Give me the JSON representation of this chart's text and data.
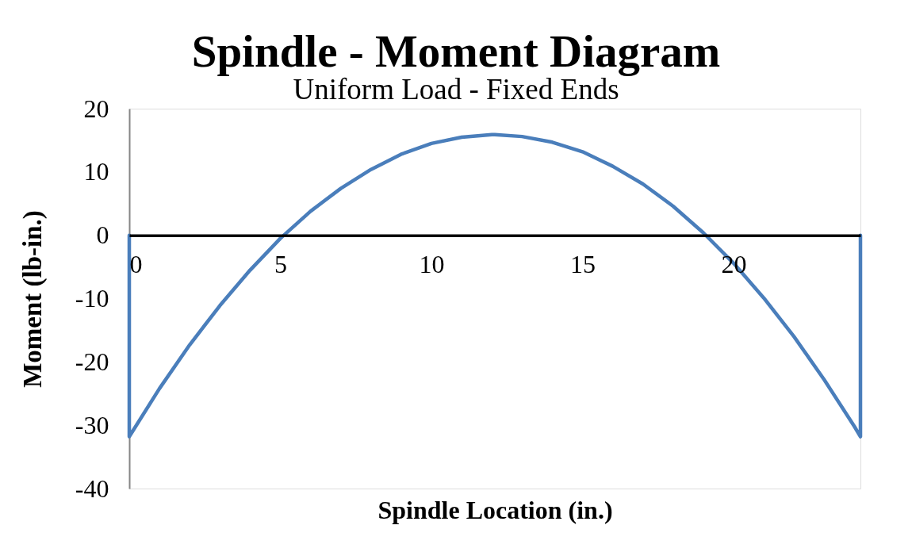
{
  "chart_data": {
    "type": "line",
    "title": "Spindle - Moment Diagram",
    "subtitle": "Uniform Load - Fixed Ends",
    "xlabel": "Spindle Location (in.)",
    "ylabel": "Moment (lb-in.)",
    "x": [
      0,
      0,
      1,
      2,
      3,
      4,
      5,
      6,
      7,
      8,
      9,
      10,
      11,
      12,
      12.1,
      13,
      14,
      15,
      16,
      17,
      18,
      19,
      20,
      21,
      22,
      23,
      24,
      24.2,
      24.2
    ],
    "series": [
      {
        "color": "#4a7ebb",
        "values": [
          0,
          -31.8,
          -24.2,
          -17.3,
          -11.1,
          -5.5,
          -0.5,
          3.8,
          7.4,
          10.4,
          12.8,
          14.5,
          15.5,
          15.9,
          15.9,
          15.6,
          14.7,
          13.2,
          10.9,
          8.1,
          4.6,
          0.4,
          -4.4,
          -9.9,
          -16.0,
          -22.8,
          -30.2,
          -31.8,
          0
        ]
      }
    ],
    "xlim": [
      0,
      24.2
    ],
    "ylim": [
      -40,
      20
    ],
    "xticks": [
      0,
      5,
      10,
      15,
      20
    ],
    "yticks": [
      -40,
      -30,
      -20,
      -10,
      0,
      10,
      20
    ],
    "line_style": "solid"
  }
}
